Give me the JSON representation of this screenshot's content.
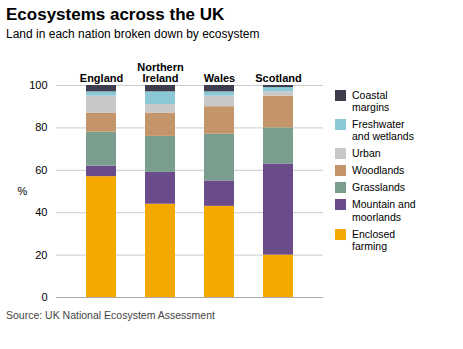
{
  "chart_data": {
    "type": "bar",
    "stacked": true,
    "title": "Ecosystems across the UK",
    "subtitle": "Land in each nation broken down by ecosystem",
    "source": "Source: UK National Ecosystem Assessment",
    "ylabel": "%",
    "categories": [
      "England",
      "Northern\nIreland",
      "Wales",
      "Scotland"
    ],
    "series": [
      {
        "name": "Enclosed\nfarming",
        "color": "#F5A800",
        "values": [
          57,
          44,
          43,
          20
        ]
      },
      {
        "name": "Mountain and\nmoorlands",
        "color": "#6B4C8B",
        "values": [
          5,
          15,
          12,
          43
        ]
      },
      {
        "name": "Grasslands",
        "color": "#7A9E8E",
        "values": [
          16,
          17,
          22,
          17
        ]
      },
      {
        "name": "Woodlands",
        "color": "#C4956A",
        "values": [
          9,
          11,
          13,
          15
        ]
      },
      {
        "name": "Urban",
        "color": "#C8C8C8",
        "values": [
          8,
          4,
          5,
          2
        ]
      },
      {
        "name": "Freshwater\nand wetlands",
        "color": "#8AC8D8",
        "values": [
          2,
          6,
          2,
          2
        ]
      },
      {
        "name": "Coastal\nmargins",
        "color": "#3D3D4D",
        "values": [
          3,
          3,
          3,
          1
        ]
      }
    ],
    "ylim": [
      0,
      100
    ],
    "yticks": [
      0,
      20,
      40,
      60,
      80,
      100
    ],
    "grid": true,
    "legend": "right"
  }
}
